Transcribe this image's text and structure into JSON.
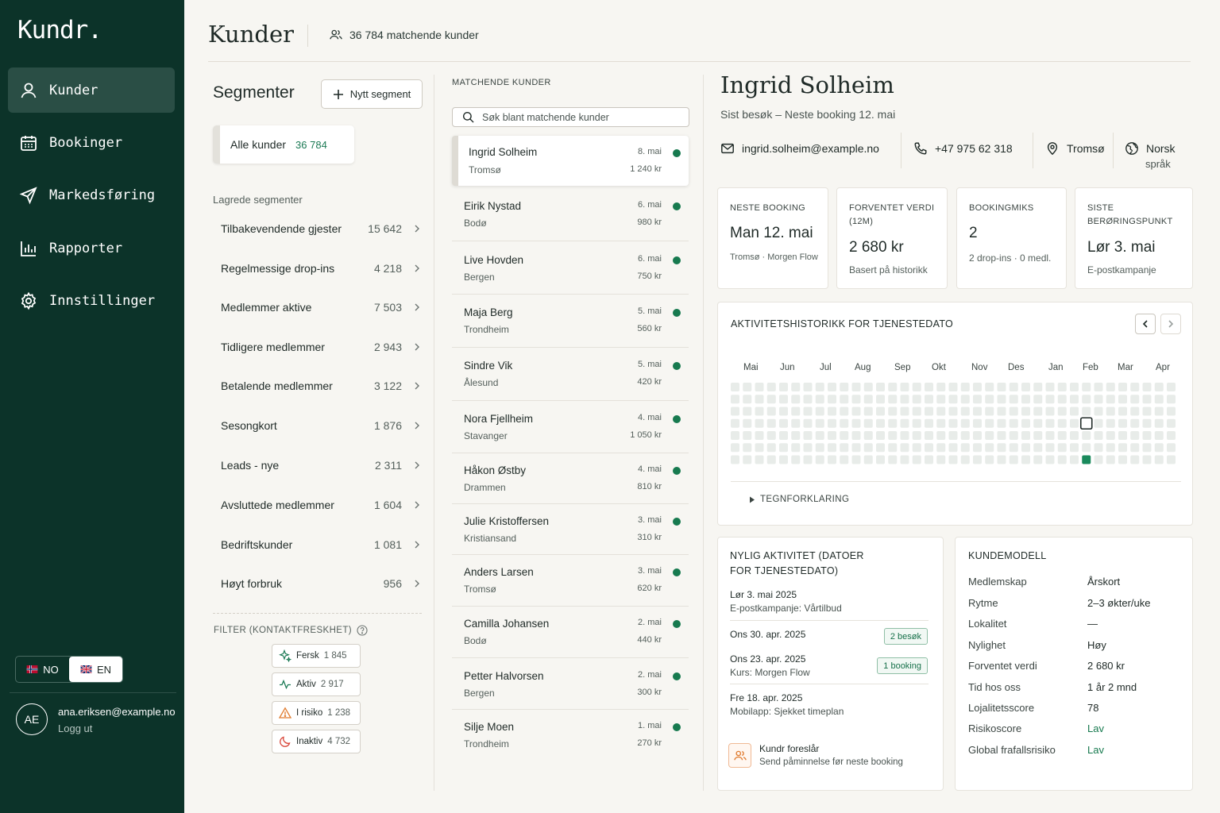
{
  "brand": {
    "logo": "Kundr."
  },
  "nav": [
    {
      "label": "Kunder",
      "icon": "user-icon",
      "active": true
    },
    {
      "label": "Bookinger",
      "icon": "calendar-icon"
    },
    {
      "label": "Markedsføring",
      "icon": "send-icon"
    },
    {
      "label": "Rapporter",
      "icon": "bar-chart-icon"
    },
    {
      "label": "Innstillinger",
      "icon": "gear-icon"
    }
  ],
  "lang": {
    "no": "NO",
    "en": "EN",
    "selected": "EN"
  },
  "user": {
    "initials": "AE",
    "email": "ana.eriksen@example.no",
    "logout": "Logg ut"
  },
  "header": {
    "title": "Kunder",
    "match_count": "36 784 matchende kunder"
  },
  "segments": {
    "title": "Segmenter",
    "new_button": "Nytt segment",
    "all_label": "Alle kunder",
    "all_count": "36 784",
    "saved_header": "Lagrede segmenter",
    "items": [
      {
        "label": "Tilbakevendende gjester",
        "count": "15 642"
      },
      {
        "label": "Regelmessige drop-ins",
        "count": "4 218"
      },
      {
        "label": "Medlemmer aktive",
        "count": "7 503"
      },
      {
        "label": "Tidligere medlemmer",
        "count": "2 943"
      },
      {
        "label": "Betalende medlemmer",
        "count": "3 122"
      },
      {
        "label": "Sesongkort",
        "count": "1 876"
      },
      {
        "label": "Leads - nye",
        "count": "2 311"
      },
      {
        "label": "Avsluttede medlemmer",
        "count": "1 604"
      },
      {
        "label": "Bedriftskunder",
        "count": "1 081"
      },
      {
        "label": "Høyt forbruk",
        "count": "956"
      }
    ],
    "filter_header": "FILTER (KONTAKTFRESKHET)",
    "filters": [
      {
        "label": "Fersk",
        "count": "1 845",
        "icon": "sparkle-icon",
        "color": "#1c7a55"
      },
      {
        "label": "Aktiv",
        "count": "2 917",
        "icon": "activity-icon",
        "color": "#1c7a55"
      },
      {
        "label": "I risiko",
        "count": "1 238",
        "icon": "warning-icon",
        "color": "#e07b2e"
      },
      {
        "label": "Inaktiv",
        "count": "4 732",
        "icon": "moon-icon",
        "color": "#d9463a"
      }
    ]
  },
  "matches": {
    "header": "MATCHENDE KUNDER",
    "search_placeholder": "Søk blant matchende kunder",
    "customers": [
      {
        "name": "Ingrid Solheim",
        "city": "Tromsø",
        "date": "8. mai",
        "amount": "1 240 kr",
        "selected": true
      },
      {
        "name": "Eirik Nystad",
        "city": "Bodø",
        "date": "6. mai",
        "amount": "980 kr"
      },
      {
        "name": "Live Hovden",
        "city": "Bergen",
        "date": "6. mai",
        "amount": "750 kr"
      },
      {
        "name": "Maja Berg",
        "city": "Trondheim",
        "date": "5. mai",
        "amount": "560 kr"
      },
      {
        "name": "Sindre Vik",
        "city": "Ålesund",
        "date": "5. mai",
        "amount": "420 kr"
      },
      {
        "name": "Nora Fjellheim",
        "city": "Stavanger",
        "date": "4. mai",
        "amount": "1 050 kr"
      },
      {
        "name": "Håkon Østby",
        "city": "Drammen",
        "date": "4. mai",
        "amount": "810 kr"
      },
      {
        "name": "Julie Kristoffersen",
        "city": "Kristiansand",
        "date": "3. mai",
        "amount": "310 kr"
      },
      {
        "name": "Anders Larsen",
        "city": "Tromsø",
        "date": "3. mai",
        "amount": "620 kr"
      },
      {
        "name": "Camilla Johansen",
        "city": "Bodø",
        "date": "2. mai",
        "amount": "440 kr"
      },
      {
        "name": "Petter Halvorsen",
        "city": "Bergen",
        "date": "2. mai",
        "amount": "300 kr"
      },
      {
        "name": "Silje Moen",
        "city": "Trondheim",
        "date": "1. mai",
        "amount": "270 kr"
      }
    ]
  },
  "detail": {
    "name": "Ingrid Solheim",
    "subtitle": "Sist besøk – Neste booking 12. mai",
    "email": "ingrid.solheim@example.no",
    "phone": "+47 975 62 318",
    "location": "Tromsø",
    "language": "Norsk",
    "language_sub": "språk",
    "kpis": [
      {
        "label": "NESTE BOOKING",
        "value": "Man 12. mai",
        "sub": "Tromsø · Morgen Flow"
      },
      {
        "label": "FORVENTET VERDI (12M)",
        "value": "2 680 kr",
        "sub": "Basert på historikk"
      },
      {
        "label": "BOOKINGMIKS",
        "value": "2",
        "sub": "2 drop-ins · 0 medl."
      },
      {
        "label": "SISTE BERØRINGSPUNKT",
        "value": "Lør 3. mai",
        "sub": "E-postkampanje"
      }
    ],
    "activity": {
      "title": "AKTIVITETSHISTORIKK FOR TJENESTEDATO",
      "months": [
        "Mai",
        "Jun",
        "Jul",
        "Aug",
        "Sep",
        "Okt",
        "Nov",
        "Des",
        "Jan",
        "Feb",
        "Mar",
        "Apr"
      ],
      "active_color": "#1a8a5c",
      "legend": "TEGNFORKLARING"
    },
    "recent": {
      "title": "NYLIG AKTIVITET (DATOER FOR TJENESTEDATO)",
      "items": [
        {
          "date": "Lør 3. mai 2025",
          "desc": "E-postkampanje: Vårtilbud",
          "badge": ""
        },
        {
          "date": "Ons 30. apr. 2025",
          "desc": "",
          "badge": "2 besøk"
        },
        {
          "date": "Ons 23. apr. 2025",
          "desc": "Kurs: Morgen Flow",
          "badge": "1 booking"
        },
        {
          "date": "Fre 18. apr. 2025",
          "desc": "Mobilapp: Sjekket timeplan",
          "badge": ""
        }
      ],
      "suggestion_title": "Kundr foreslår",
      "suggestion_text": "Send påminnelse før neste booking"
    },
    "model": {
      "title": "KUNDEMODELL",
      "rows": [
        {
          "k": "Medlemskap",
          "v": "Årskort"
        },
        {
          "k": "Rytme",
          "v": "2–3 økter/uke"
        },
        {
          "k": "Lokalitet",
          "v": "—"
        },
        {
          "k": "Nylighet",
          "v": "Høy"
        },
        {
          "k": "Forventet verdi",
          "v": "2 680 kr"
        },
        {
          "k": "Tid hos oss",
          "v": "1 år 2 mnd"
        },
        {
          "k": "Lojalitetsscore",
          "v": "78"
        },
        {
          "k": "Risikoscore",
          "v": "Lav"
        },
        {
          "k": "Global frafallsrisiko",
          "v": "Lav"
        }
      ]
    }
  }
}
